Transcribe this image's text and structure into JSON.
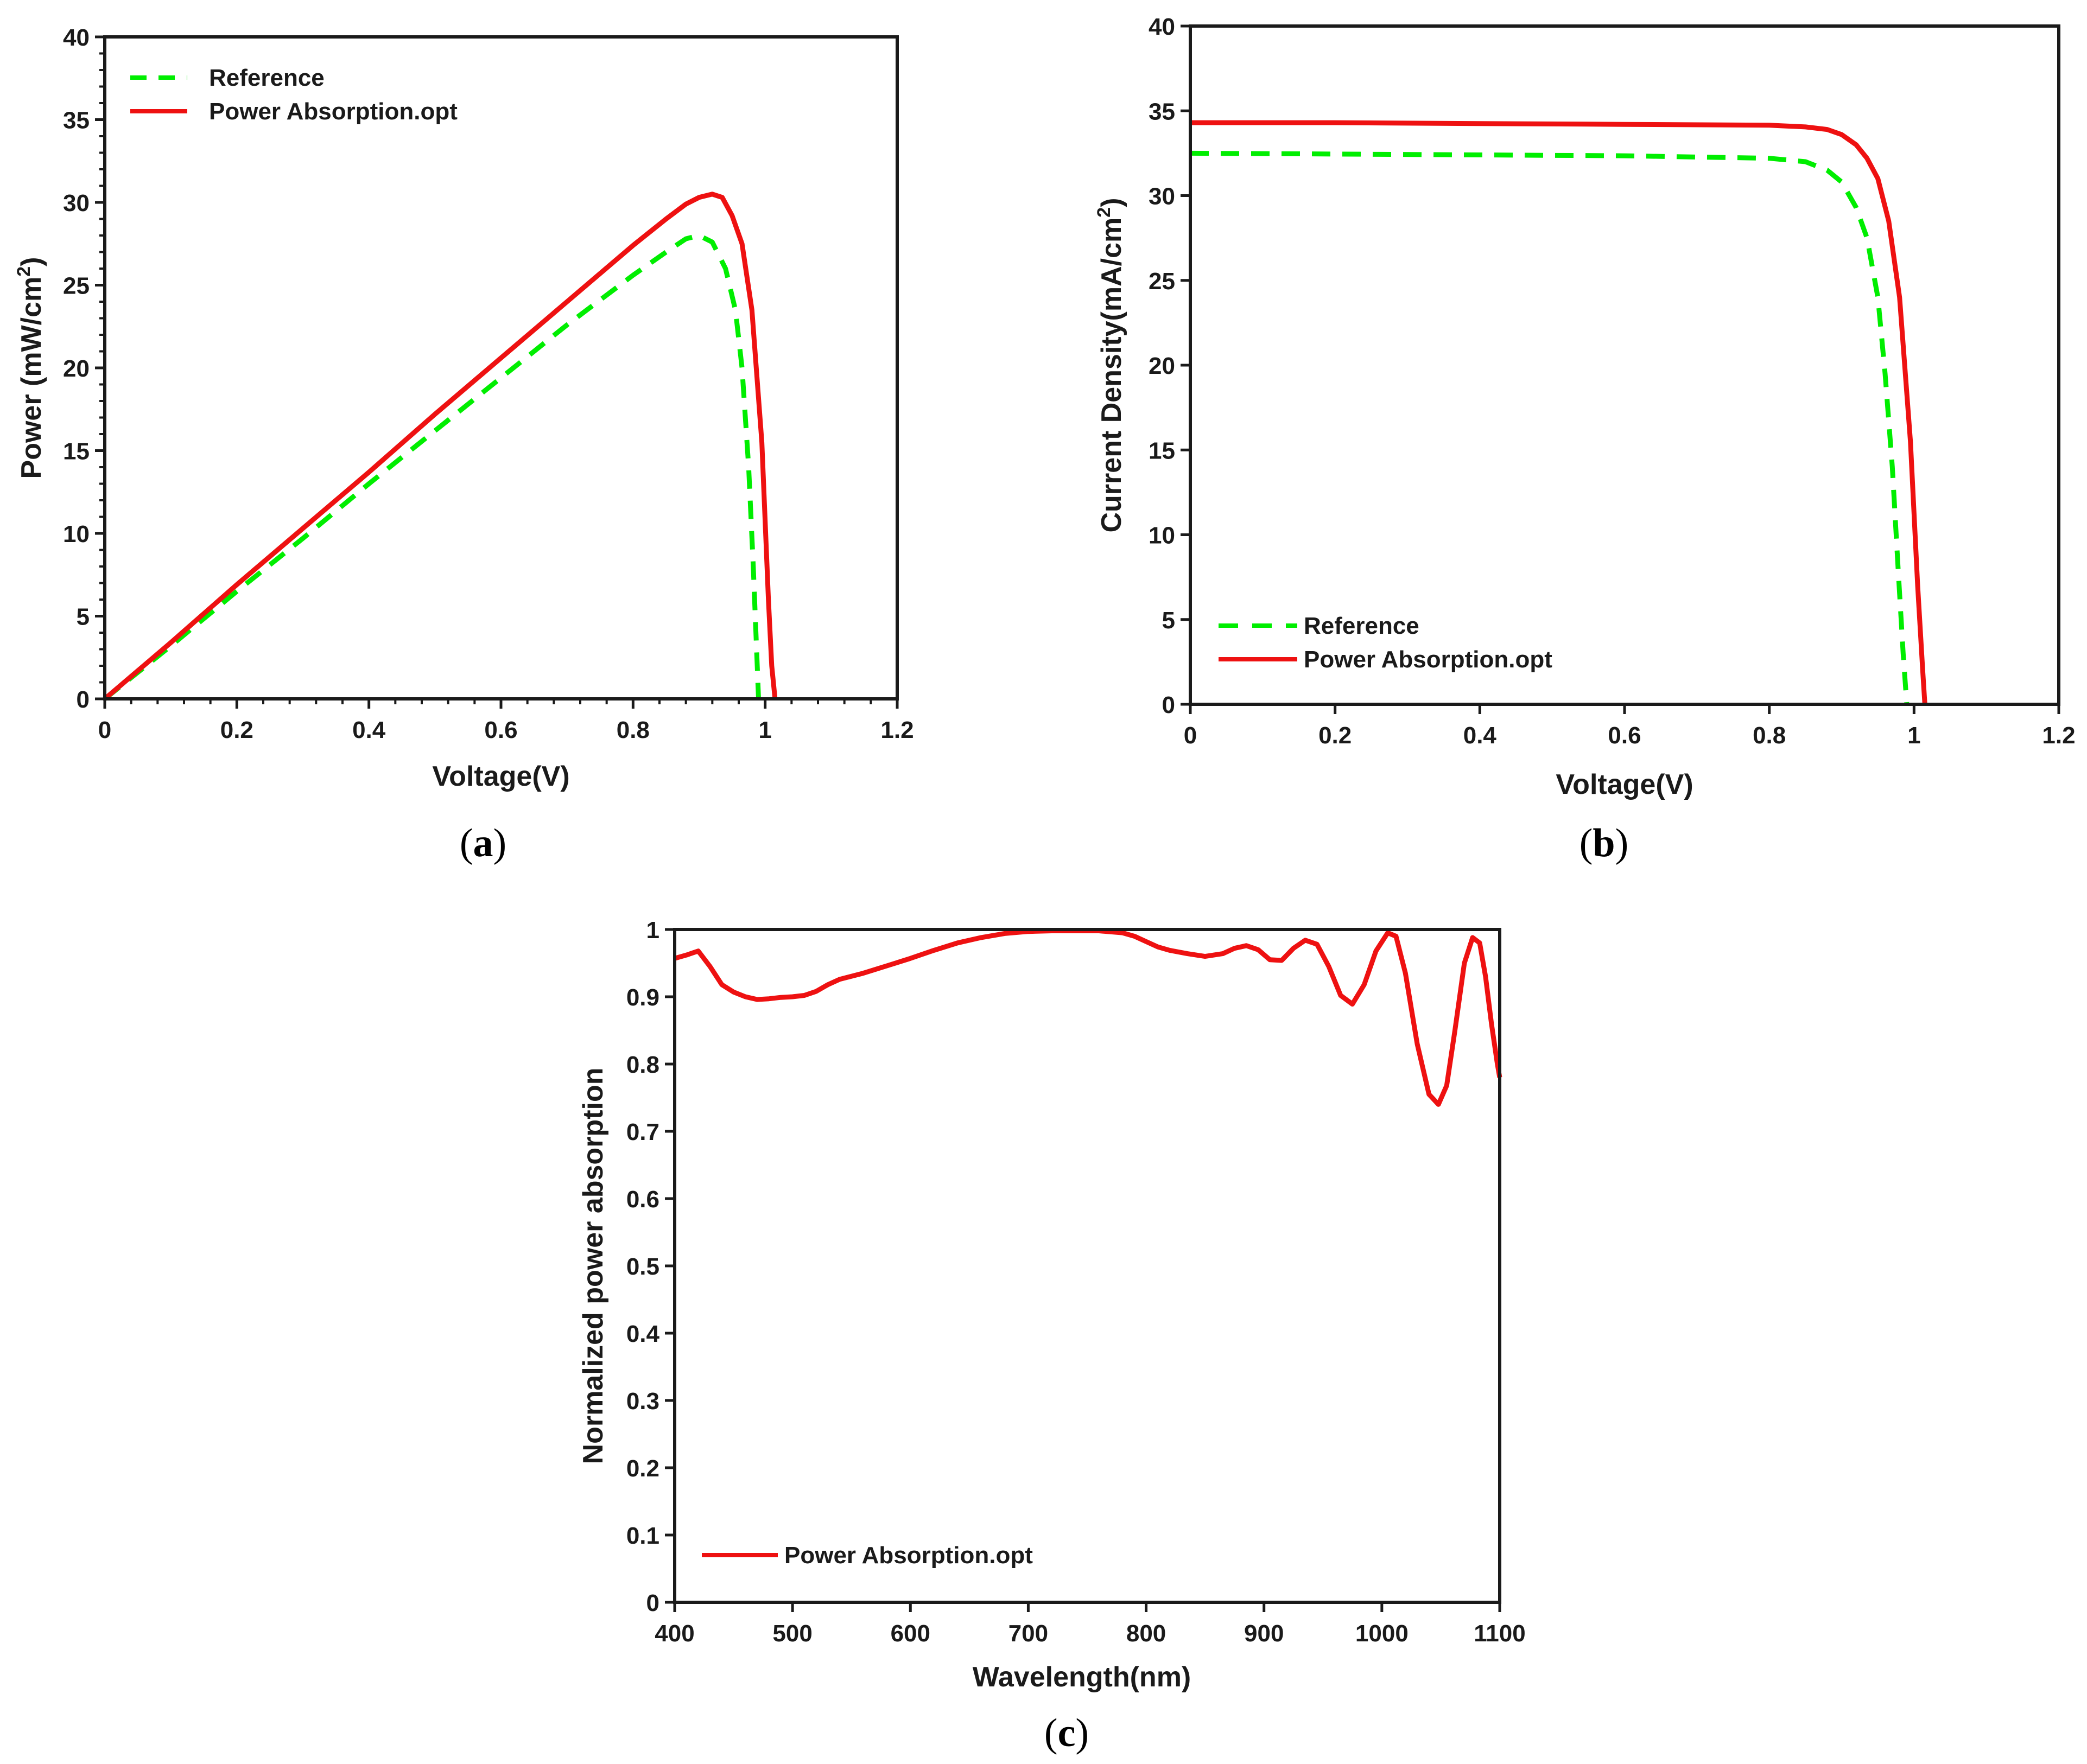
{
  "colors": {
    "reference": "#00ee00",
    "power_absorption": "#ee1111",
    "axis": "#1a1a1a"
  },
  "chart_data": [
    {
      "id": "a",
      "panel_label": "a",
      "type": "line",
      "xlabel": "Voltage(V)",
      "ylabel": "Power (mW/cm",
      "ylabel_sup": "2",
      "ylabel_close": ")",
      "xlim": [
        0,
        1.2
      ],
      "ylim": [
        0,
        40
      ],
      "xticks": [
        0,
        0.2,
        0.4,
        0.6,
        0.8,
        1,
        1.2
      ],
      "xtick_labels": [
        "0",
        "0.2",
        "0.4",
        "0.6",
        "0.8",
        "1",
        "1.2"
      ],
      "yticks": [
        0,
        5,
        10,
        15,
        20,
        25,
        30,
        35,
        40
      ],
      "ytick_labels": [
        "0",
        "5",
        "10",
        "15",
        "20",
        "25",
        "30",
        "35",
        "40"
      ],
      "legend_position": "top-left",
      "series": [
        {
          "name": "Reference",
          "style": "dashed",
          "color_key": "reference",
          "x": [
            0,
            0.1,
            0.2,
            0.3,
            0.4,
            0.5,
            0.6,
            0.7,
            0.8,
            0.85,
            0.88,
            0.9,
            0.92,
            0.94,
            0.955,
            0.965,
            0.975,
            0.982,
            0.988,
            0.99
          ],
          "y": [
            0,
            3.2,
            6.5,
            9.7,
            13.0,
            16.2,
            19.4,
            22.6,
            25.6,
            27.0,
            27.8,
            28.0,
            27.6,
            26.0,
            23.5,
            20.0,
            14.0,
            8.0,
            2.0,
            0
          ]
        },
        {
          "name": "Power Absorption.opt",
          "style": "solid",
          "color_key": "power_absorption",
          "x": [
            0,
            0.1,
            0.2,
            0.3,
            0.4,
            0.5,
            0.6,
            0.7,
            0.8,
            0.85,
            0.88,
            0.9,
            0.92,
            0.935,
            0.95,
            0.965,
            0.98,
            0.995,
            1.005,
            1.01,
            1.015
          ],
          "y": [
            0,
            3.4,
            6.9,
            10.3,
            13.7,
            17.2,
            20.6,
            24.0,
            27.4,
            29.0,
            29.9,
            30.3,
            30.5,
            30.3,
            29.2,
            27.5,
            23.5,
            15.5,
            6.0,
            2.0,
            0
          ]
        }
      ]
    },
    {
      "id": "b",
      "panel_label": "b",
      "type": "line",
      "xlabel": "Voltage(V)",
      "ylabel": "Current Density(mA/cm",
      "ylabel_sup": "2",
      "ylabel_close": ")",
      "xlim": [
        0,
        1.2
      ],
      "ylim": [
        0,
        40
      ],
      "xticks": [
        0,
        0.2,
        0.4,
        0.6,
        0.8,
        1,
        1.2
      ],
      "xtick_labels": [
        "0",
        "0.2",
        "0.4",
        "0.6",
        "0.8",
        "1",
        "1.2"
      ],
      "yticks": [
        0,
        5,
        10,
        15,
        20,
        25,
        30,
        35,
        40
      ],
      "ytick_labels": [
        "0",
        "5",
        "10",
        "15",
        "20",
        "25",
        "30",
        "35",
        "40"
      ],
      "legend_position": "bottom-left",
      "series": [
        {
          "name": "Reference",
          "style": "dashed",
          "color_key": "reference",
          "x": [
            0,
            0.2,
            0.4,
            0.6,
            0.8,
            0.85,
            0.88,
            0.9,
            0.92,
            0.935,
            0.95,
            0.96,
            0.97,
            0.978,
            0.985,
            0.99
          ],
          "y": [
            32.5,
            32.45,
            32.4,
            32.35,
            32.2,
            32.0,
            31.5,
            30.8,
            29.3,
            27.5,
            24.0,
            19.5,
            14.0,
            8.0,
            3.0,
            0
          ]
        },
        {
          "name": "Power Absorption.opt",
          "style": "solid",
          "color_key": "power_absorption",
          "x": [
            0,
            0.2,
            0.4,
            0.6,
            0.8,
            0.85,
            0.88,
            0.9,
            0.92,
            0.935,
            0.95,
            0.965,
            0.98,
            0.995,
            1.005,
            1.012,
            1.015
          ],
          "y": [
            34.3,
            34.3,
            34.25,
            34.2,
            34.15,
            34.05,
            33.9,
            33.6,
            33.0,
            32.2,
            31.0,
            28.5,
            24.0,
            15.5,
            7.0,
            2.0,
            0
          ]
        }
      ]
    },
    {
      "id": "c",
      "panel_label": "c",
      "type": "line",
      "xlabel": "Wavelength(nm)",
      "ylabel": "Normalized power absorption",
      "xlim": [
        400,
        1100
      ],
      "ylim": [
        0,
        1
      ],
      "xticks": [
        400,
        500,
        600,
        700,
        800,
        900,
        1000,
        1100
      ],
      "xtick_labels": [
        "400",
        "500",
        "600",
        "700",
        "800",
        "900",
        "1000",
        "1100"
      ],
      "yticks": [
        0,
        0.1,
        0.2,
        0.3,
        0.4,
        0.5,
        0.6,
        0.7,
        0.8,
        0.9,
        1
      ],
      "ytick_labels": [
        "0",
        "0.1",
        "0.2",
        "0.3",
        "0.4",
        "0.5",
        "0.6",
        "0.7",
        "0.8",
        "0.9",
        "1"
      ],
      "legend_position": "bottom-left",
      "series": [
        {
          "name": "Power Absorption.opt",
          "style": "solid",
          "color_key": "power_absorption",
          "x": [
            400,
            410,
            420,
            430,
            440,
            450,
            460,
            470,
            480,
            490,
            500,
            510,
            520,
            530,
            540,
            560,
            580,
            600,
            620,
            640,
            660,
            680,
            700,
            720,
            740,
            760,
            780,
            790,
            800,
            810,
            820,
            835,
            850,
            865,
            875,
            885,
            895,
            905,
            915,
            925,
            935,
            945,
            955,
            965,
            975,
            985,
            995,
            1005,
            1012,
            1020,
            1030,
            1040,
            1048,
            1055,
            1062,
            1070,
            1077,
            1083,
            1088,
            1093,
            1098,
            1100
          ],
          "y": [
            0.957,
            0.962,
            0.968,
            0.945,
            0.918,
            0.907,
            0.9,
            0.896,
            0.897,
            0.899,
            0.9,
            0.902,
            0.908,
            0.918,
            0.926,
            0.935,
            0.946,
            0.957,
            0.969,
            0.98,
            0.988,
            0.994,
            0.997,
            0.998,
            0.998,
            0.998,
            0.995,
            0.99,
            0.982,
            0.974,
            0.969,
            0.964,
            0.96,
            0.964,
            0.972,
            0.976,
            0.97,
            0.955,
            0.954,
            0.972,
            0.984,
            0.978,
            0.945,
            0.902,
            0.889,
            0.918,
            0.968,
            0.995,
            0.99,
            0.935,
            0.83,
            0.755,
            0.74,
            0.768,
            0.85,
            0.95,
            0.988,
            0.98,
            0.93,
            0.86,
            0.8,
            0.78
          ]
        }
      ]
    }
  ]
}
